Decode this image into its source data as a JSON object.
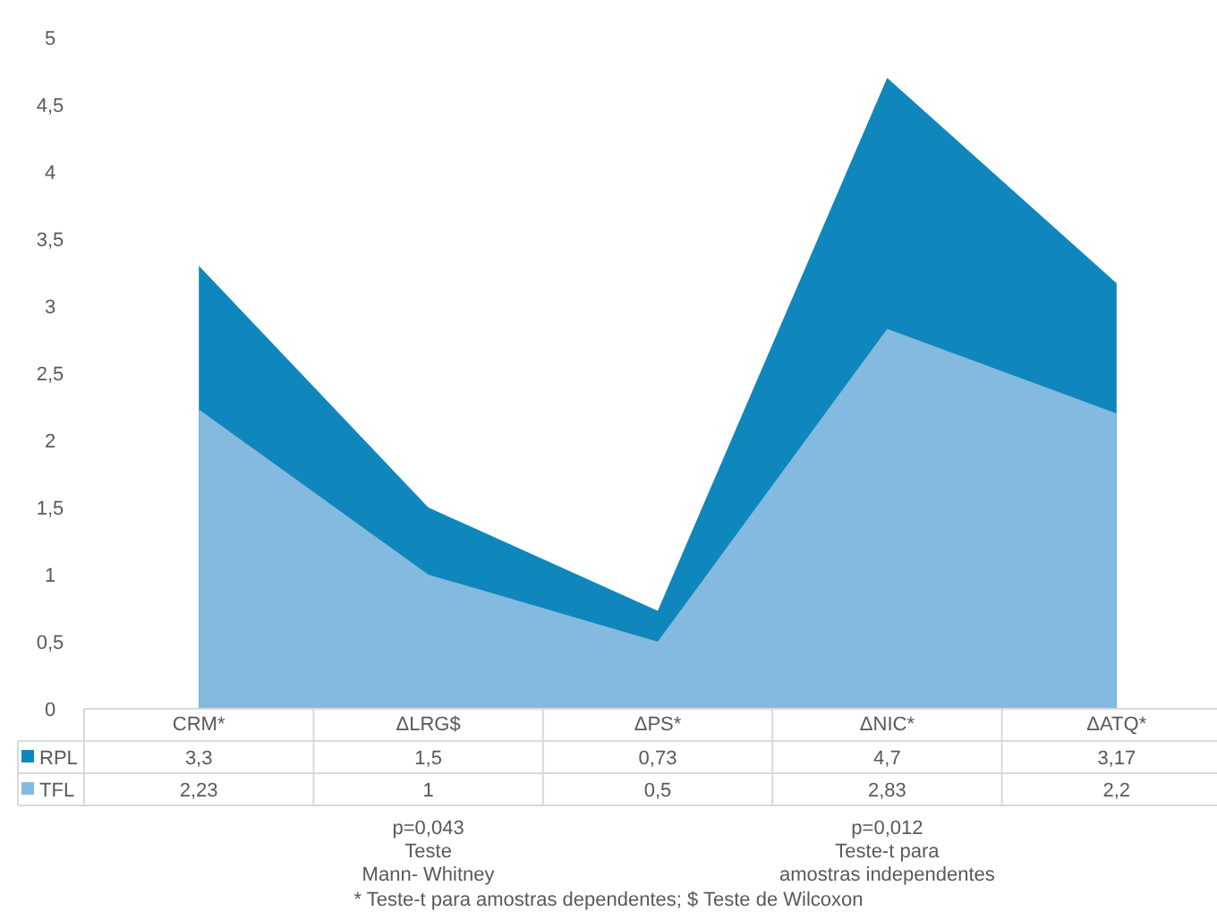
{
  "chart_data": {
    "type": "area",
    "categories": [
      "CRM*",
      "ΔLRG$",
      "ΔPS*",
      "ΔNIC*",
      "ΔATQ*"
    ],
    "series": [
      {
        "name": "RPL",
        "color": "#0f87bd",
        "values": [
          3.3,
          1.5,
          0.73,
          4.7,
          3.17
        ],
        "value_labels": [
          "3,3",
          "1,5",
          "0,73",
          "4,7",
          "3,17"
        ]
      },
      {
        "name": "TFL",
        "color": "#84badf",
        "values": [
          2.23,
          1,
          0.5,
          2.83,
          2.2
        ],
        "value_labels": [
          "2,23",
          "1",
          "0,5",
          "2,83",
          "2,2"
        ]
      }
    ],
    "ylim": [
      0,
      5
    ],
    "yticks": [
      0,
      {
        "value": 0.5,
        "label": "0,5"
      },
      1,
      {
        "value": 1.5,
        "label": "1,5"
      },
      2,
      {
        "value": 2.5,
        "label": "2,5"
      },
      3,
      {
        "value": 3.5,
        "label": "3,5"
      },
      4,
      {
        "value": 4.5,
        "label": "4,5"
      },
      5
    ],
    "grid": false,
    "legend": "bottom",
    "annotations": [
      "p=0,043\nTeste\nMann- Whitney",
      "p=0,012\nTeste-t para\namostras independentes",
      "* Teste-t para amostras dependentes; $ Teste de Wilcoxon"
    ]
  }
}
